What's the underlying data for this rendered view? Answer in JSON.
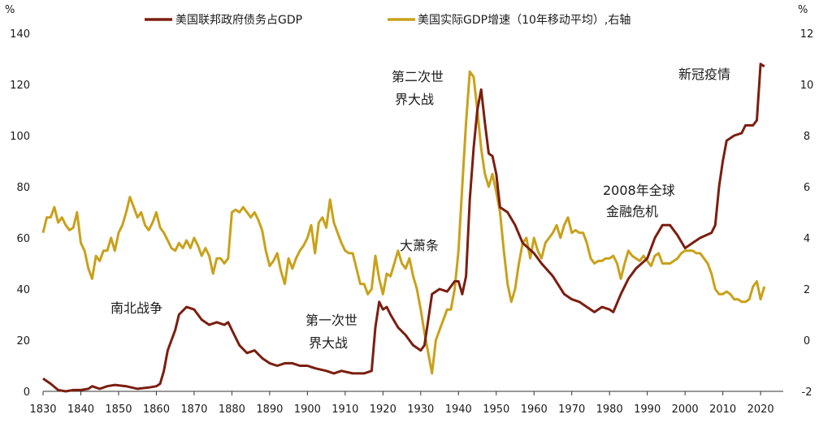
{
  "chart_data": {
    "type": "line",
    "x_ticks": [
      1830,
      1840,
      1850,
      1860,
      1870,
      1880,
      1890,
      1900,
      1910,
      1920,
      1930,
      1940,
      1950,
      1960,
      1970,
      1980,
      1990,
      2000,
      2010,
      2020
    ],
    "xlim": [
      1830,
      2026
    ],
    "left_axis": {
      "unit": "%",
      "ylim": [
        0,
        140
      ],
      "ticks": [
        0,
        20,
        40,
        60,
        80,
        100,
        120,
        140
      ]
    },
    "right_axis": {
      "unit": "%",
      "ylim": [
        -2,
        12
      ],
      "ticks": [
        -2,
        0,
        2,
        4,
        6,
        8,
        10,
        12
      ]
    },
    "colors": {
      "debt": "#7b1e10",
      "growth": "#c9a11a"
    },
    "legend": {
      "debt": "美国联邦政府债务占GDP",
      "growth": "美国实际GDP增速（10年移动平均）,右轴"
    },
    "annotations": {
      "civil_war": "南北战争",
      "ww1_line1": "第一次世",
      "ww1_line2": "界大战",
      "depression": "大萧条",
      "ww2_line1": "第二次世",
      "ww2_line2": "界大战",
      "gfc_line1": "2008年全球",
      "gfc_line2": "金融危机",
      "covid": "新冠疫情"
    },
    "series": [
      {
        "name": "美国联邦政府债务占GDP",
        "axis": "left",
        "points": [
          [
            1830,
            5
          ],
          [
            1832,
            3
          ],
          [
            1834,
            0.5
          ],
          [
            1836,
            0
          ],
          [
            1838,
            0.5
          ],
          [
            1840,
            0.5
          ],
          [
            1842,
            1
          ],
          [
            1843,
            2
          ],
          [
            1845,
            1
          ],
          [
            1847,
            2
          ],
          [
            1849,
            2.5
          ],
          [
            1852,
            2
          ],
          [
            1855,
            1
          ],
          [
            1858,
            1.5
          ],
          [
            1860,
            2
          ],
          [
            1861,
            3
          ],
          [
            1862,
            8
          ],
          [
            1863,
            16
          ],
          [
            1865,
            24
          ],
          [
            1866,
            30
          ],
          [
            1868,
            33
          ],
          [
            1870,
            32
          ],
          [
            1871,
            30
          ],
          [
            1872,
            28
          ],
          [
            1874,
            26
          ],
          [
            1876,
            27
          ],
          [
            1878,
            26
          ],
          [
            1879,
            27
          ],
          [
            1880,
            24
          ],
          [
            1882,
            18
          ],
          [
            1884,
            15
          ],
          [
            1886,
            16
          ],
          [
            1888,
            13
          ],
          [
            1890,
            11
          ],
          [
            1892,
            10
          ],
          [
            1894,
            11
          ],
          [
            1896,
            11
          ],
          [
            1898,
            10
          ],
          [
            1900,
            10
          ],
          [
            1902,
            9
          ],
          [
            1905,
            8
          ],
          [
            1907,
            7
          ],
          [
            1909,
            8
          ],
          [
            1912,
            7
          ],
          [
            1915,
            7
          ],
          [
            1917,
            8
          ],
          [
            1918,
            25
          ],
          [
            1919,
            35
          ],
          [
            1920,
            32
          ],
          [
            1921,
            33
          ],
          [
            1922,
            30
          ],
          [
            1924,
            25
          ],
          [
            1926,
            22
          ],
          [
            1928,
            18
          ],
          [
            1930,
            16
          ],
          [
            1931,
            18
          ],
          [
            1932,
            28
          ],
          [
            1933,
            38
          ],
          [
            1935,
            40
          ],
          [
            1937,
            39
          ],
          [
            1939,
            43
          ],
          [
            1940,
            43
          ],
          [
            1941,
            38
          ],
          [
            1942,
            45
          ],
          [
            1943,
            75
          ],
          [
            1944,
            95
          ],
          [
            1945,
            110
          ],
          [
            1946,
            118
          ],
          [
            1947,
            105
          ],
          [
            1948,
            93
          ],
          [
            1949,
            92
          ],
          [
            1950,
            85
          ],
          [
            1951,
            72
          ],
          [
            1953,
            70
          ],
          [
            1955,
            65
          ],
          [
            1957,
            58
          ],
          [
            1960,
            54
          ],
          [
            1962,
            50
          ],
          [
            1965,
            45
          ],
          [
            1968,
            38
          ],
          [
            1970,
            36
          ],
          [
            1972,
            35
          ],
          [
            1974,
            33
          ],
          [
            1976,
            31
          ],
          [
            1978,
            33
          ],
          [
            1980,
            32
          ],
          [
            1981,
            31
          ],
          [
            1983,
            38
          ],
          [
            1985,
            44
          ],
          [
            1987,
            48
          ],
          [
            1990,
            52
          ],
          [
            1992,
            60
          ],
          [
            1994,
            65
          ],
          [
            1996,
            65
          ],
          [
            1998,
            61
          ],
          [
            2000,
            56
          ],
          [
            2002,
            58
          ],
          [
            2004,
            60
          ],
          [
            2007,
            62
          ],
          [
            2008,
            65
          ],
          [
            2009,
            80
          ],
          [
            2010,
            90
          ],
          [
            2011,
            98
          ],
          [
            2013,
            100
          ],
          [
            2015,
            101
          ],
          [
            2016,
            104
          ],
          [
            2018,
            104
          ],
          [
            2019,
            106
          ],
          [
            2020,
            128
          ],
          [
            2021,
            127
          ]
        ]
      },
      {
        "name": "美国实际GDP增速（10年移动平均）,右轴",
        "axis": "right",
        "points": [
          [
            1830,
            4.2
          ],
          [
            1831,
            4.8
          ],
          [
            1832,
            4.8
          ],
          [
            1833,
            5.2
          ],
          [
            1834,
            4.6
          ],
          [
            1835,
            4.8
          ],
          [
            1836,
            4.5
          ],
          [
            1837,
            4.3
          ],
          [
            1838,
            4.4
          ],
          [
            1839,
            5
          ],
          [
            1840,
            3.8
          ],
          [
            1841,
            3.5
          ],
          [
            1842,
            2.8
          ],
          [
            1843,
            2.4
          ],
          [
            1844,
            3.3
          ],
          [
            1845,
            3.1
          ],
          [
            1846,
            3.5
          ],
          [
            1847,
            3.5
          ],
          [
            1848,
            4
          ],
          [
            1849,
            3.5
          ],
          [
            1850,
            4.2
          ],
          [
            1851,
            4.5
          ],
          [
            1852,
            5
          ],
          [
            1853,
            5.6
          ],
          [
            1854,
            5.2
          ],
          [
            1855,
            4.8
          ],
          [
            1856,
            5
          ],
          [
            1857,
            4.5
          ],
          [
            1858,
            4.3
          ],
          [
            1859,
            4.6
          ],
          [
            1860,
            5
          ],
          [
            1861,
            4.4
          ],
          [
            1862,
            4.2
          ],
          [
            1863,
            3.9
          ],
          [
            1864,
            3.6
          ],
          [
            1865,
            3.5
          ],
          [
            1866,
            3.8
          ],
          [
            1867,
            3.6
          ],
          [
            1868,
            3.9
          ],
          [
            1869,
            3.6
          ],
          [
            1870,
            4
          ],
          [
            1871,
            3.7
          ],
          [
            1872,
            3.3
          ],
          [
            1873,
            3.6
          ],
          [
            1874,
            3.3
          ],
          [
            1875,
            2.6
          ],
          [
            1876,
            3.2
          ],
          [
            1877,
            3.2
          ],
          [
            1878,
            3
          ],
          [
            1879,
            3.2
          ],
          [
            1880,
            5
          ],
          [
            1881,
            5.1
          ],
          [
            1882,
            5
          ],
          [
            1883,
            5.2
          ],
          [
            1884,
            5
          ],
          [
            1885,
            4.8
          ],
          [
            1886,
            5
          ],
          [
            1887,
            4.7
          ],
          [
            1888,
            4.3
          ],
          [
            1889,
            3.5
          ],
          [
            1890,
            2.9
          ],
          [
            1891,
            3.1
          ],
          [
            1892,
            3.4
          ],
          [
            1893,
            2.7
          ],
          [
            1894,
            2.2
          ],
          [
            1895,
            3.2
          ],
          [
            1896,
            2.8
          ],
          [
            1897,
            3.2
          ],
          [
            1898,
            3.5
          ],
          [
            1899,
            3.7
          ],
          [
            1900,
            4
          ],
          [
            1901,
            4.5
          ],
          [
            1902,
            3.4
          ],
          [
            1903,
            4.6
          ],
          [
            1904,
            4.8
          ],
          [
            1905,
            4.4
          ],
          [
            1906,
            5.5
          ],
          [
            1907,
            4.6
          ],
          [
            1908,
            4.2
          ],
          [
            1909,
            3.8
          ],
          [
            1910,
            3.5
          ],
          [
            1911,
            3.4
          ],
          [
            1912,
            3.4
          ],
          [
            1913,
            2.8
          ],
          [
            1914,
            2.2
          ],
          [
            1915,
            2.2
          ],
          [
            1916,
            1.8
          ],
          [
            1917,
            2
          ],
          [
            1918,
            3.3
          ],
          [
            1919,
            2.4
          ],
          [
            1920,
            1.8
          ],
          [
            1921,
            2.6
          ],
          [
            1922,
            2.5
          ],
          [
            1923,
            3
          ],
          [
            1924,
            3.5
          ],
          [
            1925,
            3
          ],
          [
            1926,
            2.8
          ],
          [
            1927,
            3.2
          ],
          [
            1928,
            2.5
          ],
          [
            1929,
            2
          ],
          [
            1930,
            1.2
          ],
          [
            1931,
            0.3
          ],
          [
            1932,
            -0.5
          ],
          [
            1933,
            -1.3
          ],
          [
            1934,
            0
          ],
          [
            1935,
            0.4
          ],
          [
            1936,
            0.8
          ],
          [
            1937,
            1.2
          ],
          [
            1938,
            1.2
          ],
          [
            1939,
            2
          ],
          [
            1940,
            3.5
          ],
          [
            1941,
            6
          ],
          [
            1942,
            8.5
          ],
          [
            1943,
            10.5
          ],
          [
            1944,
            10.3
          ],
          [
            1945,
            9
          ],
          [
            1946,
            7.5
          ],
          [
            1947,
            6.5
          ],
          [
            1948,
            6
          ],
          [
            1949,
            6.5
          ],
          [
            1950,
            5.8
          ],
          [
            1951,
            5
          ],
          [
            1952,
            3.5
          ],
          [
            1953,
            2.2
          ],
          [
            1954,
            1.5
          ],
          [
            1955,
            2
          ],
          [
            1956,
            3
          ],
          [
            1957,
            3.8
          ],
          [
            1958,
            4
          ],
          [
            1959,
            3.2
          ],
          [
            1960,
            4
          ],
          [
            1961,
            3.5
          ],
          [
            1962,
            3.2
          ],
          [
            1963,
            3.8
          ],
          [
            1964,
            4
          ],
          [
            1965,
            4.2
          ],
          [
            1966,
            4.5
          ],
          [
            1967,
            4
          ],
          [
            1968,
            4.5
          ],
          [
            1969,
            4.8
          ],
          [
            1970,
            4.2
          ],
          [
            1971,
            4.3
          ],
          [
            1972,
            4.2
          ],
          [
            1973,
            4.2
          ],
          [
            1974,
            3.8
          ],
          [
            1975,
            3.2
          ],
          [
            1976,
            3
          ],
          [
            1977,
            3.1
          ],
          [
            1978,
            3.1
          ],
          [
            1979,
            3.2
          ],
          [
            1980,
            3.2
          ],
          [
            1981,
            3.3
          ],
          [
            1982,
            3
          ],
          [
            1983,
            2.4
          ],
          [
            1984,
            3
          ],
          [
            1985,
            3.5
          ],
          [
            1986,
            3.3
          ],
          [
            1987,
            3.2
          ],
          [
            1988,
            3.1
          ],
          [
            1989,
            3.3
          ],
          [
            1990,
            3.1
          ],
          [
            1991,
            2.9
          ],
          [
            1992,
            3.3
          ],
          [
            1993,
            3.4
          ],
          [
            1994,
            3
          ],
          [
            1995,
            3
          ],
          [
            1996,
            3
          ],
          [
            1997,
            3.1
          ],
          [
            1998,
            3.2
          ],
          [
            1999,
            3.4
          ],
          [
            2000,
            3.5
          ],
          [
            2001,
            3.5
          ],
          [
            2002,
            3.5
          ],
          [
            2003,
            3.4
          ],
          [
            2004,
            3.4
          ],
          [
            2005,
            3.2
          ],
          [
            2006,
            3
          ],
          [
            2007,
            2.6
          ],
          [
            2008,
            2
          ],
          [
            2009,
            1.8
          ],
          [
            2010,
            1.8
          ],
          [
            2011,
            1.9
          ],
          [
            2012,
            1.8
          ],
          [
            2013,
            1.6
          ],
          [
            2014,
            1.6
          ],
          [
            2015,
            1.5
          ],
          [
            2016,
            1.5
          ],
          [
            2017,
            1.6
          ],
          [
            2018,
            2.1
          ],
          [
            2019,
            2.3
          ],
          [
            2020,
            1.6
          ],
          [
            2021,
            2.1
          ]
        ]
      }
    ]
  }
}
